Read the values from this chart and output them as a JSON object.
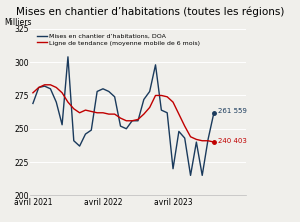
{
  "title": "Mises en chantier d’habitations (toutes les régions)",
  "ylabel": "Milliers",
  "ylim": [
    200,
    325
  ],
  "yticks": [
    200,
    225,
    250,
    275,
    300,
    325
  ],
  "xtick_labels": [
    "avril 2021",
    "avril 2022",
    "avril 2023"
  ],
  "legend_line1": "Mises en chantier d’habitations, DOA",
  "legend_line2": "Ligne de tendance (moyenne mobile de 6 mois)",
  "color_main": "#1a3a5c",
  "color_trend": "#c00000",
  "annotation_main": "261 559",
  "annotation_trend": "240 403",
  "bg_color": "#f0efeb",
  "main_series": [
    269,
    281,
    282,
    280,
    270,
    253,
    304,
    241,
    237,
    246,
    249,
    278,
    280,
    278,
    274,
    252,
    250,
    256,
    256,
    272,
    278,
    298,
    264,
    262,
    220,
    248,
    243,
    215,
    240,
    215,
    242,
    262
  ],
  "trend_series": [
    277,
    281,
    283,
    283,
    281,
    277,
    270,
    265,
    262,
    264,
    263,
    262,
    262,
    261,
    261,
    258,
    256,
    256,
    257,
    261,
    266,
    275,
    275,
    274,
    270,
    261,
    252,
    244,
    242,
    241,
    241,
    240
  ],
  "n_points": 32,
  "xtick_positions": [
    0,
    12,
    24
  ]
}
